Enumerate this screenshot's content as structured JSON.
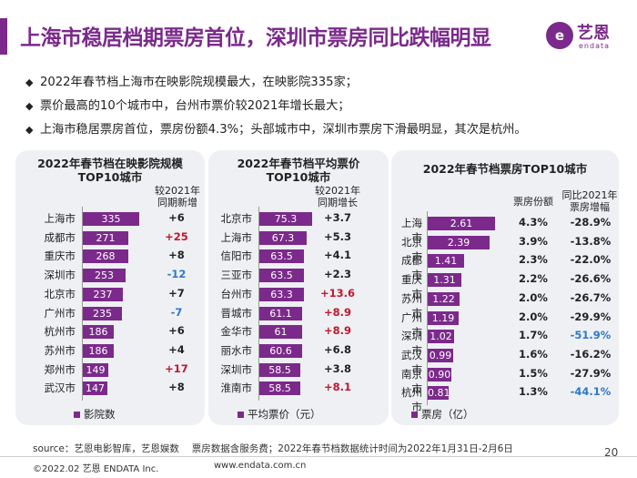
{
  "title": "上海市稳居档期票房首位，深圳市票房同比跌幅明显",
  "logo": {
    "mark": "e",
    "cn": "艺恩",
    "en": "endata"
  },
  "bullets": [
    "2022年春节档上海市在映影院规模最大，在映影院335家；",
    "票价最高的10个城市中，台州市票价较2021年增长最大；",
    "上海市稳居票房首位，票房份额4.3%；头部城市中，深圳市票房下滑最明显，其次是杭州。"
  ],
  "bullet_symbol": "◆",
  "colors": {
    "bar": "#7b2a8b",
    "positive_red": "#c0172e",
    "negative_blue": "#2d78c8"
  },
  "chart_data": [
    {
      "type": "bar",
      "title_line1": "2022年春节档在映影院规模",
      "title_line2": "TOP10城市",
      "change_header_line1": "较2021年",
      "change_header_line2": "同期新增",
      "legend": "影院数",
      "categories": [
        "上海市",
        "成都市",
        "重庆市",
        "深圳市",
        "北京市",
        "广州市",
        "杭州市",
        "苏州市",
        "郑州市",
        "武汉市"
      ],
      "values": [
        335,
        271,
        268,
        253,
        237,
        235,
        186,
        186,
        149,
        147
      ],
      "changes": [
        "+6",
        "+25",
        "+8",
        "-12",
        "+7",
        "-7",
        "+6",
        "+4",
        "+17",
        "+8"
      ],
      "change_colors": [
        "up",
        "red",
        "up",
        "blue",
        "up",
        "blue",
        "up",
        "up",
        "red",
        "up"
      ],
      "xlim": [
        0,
        335
      ]
    },
    {
      "type": "bar",
      "title_line1": "2022年春节档平均票价",
      "title_line2": "TOP10城市",
      "change_header_line1": "较2021年",
      "change_header_line2": "同期增长",
      "legend": "平均票价（元）",
      "categories": [
        "北京市",
        "上海市",
        "信阳市",
        "三亚市",
        "台州市",
        "晋城市",
        "金华市",
        "丽水市",
        "深圳市",
        "淮南市"
      ],
      "values": [
        75.3,
        67.3,
        63.5,
        63.5,
        63.3,
        61.1,
        61.0,
        60.6,
        58.5,
        58.5
      ],
      "changes": [
        "+3.7",
        "+5.3",
        "+4.1",
        "+2.3",
        "+13.6",
        "+8.9",
        "+8.9",
        "+6.8",
        "+3.8",
        "+8.1"
      ],
      "change_colors": [
        "up",
        "up",
        "up",
        "up",
        "red",
        "red",
        "red",
        "up",
        "up",
        "red"
      ],
      "xlim": [
        0,
        75.3
      ]
    },
    {
      "type": "bar",
      "title_line1": "2022年春节档票房TOP10城市",
      "share_header": "票房份额",
      "change_header_line1": "同比2021年",
      "change_header_line2": "票房增幅",
      "legend": "票房（亿）",
      "categories": [
        "上海市",
        "北京市",
        "成都市",
        "重庆市",
        "苏州市",
        "广州市",
        "深圳市",
        "武汉市",
        "南京市",
        "杭州市"
      ],
      "values": [
        2.61,
        2.39,
        1.41,
        1.31,
        1.22,
        1.19,
        1.02,
        0.99,
        0.9,
        0.81
      ],
      "value_labels": [
        "2.61",
        "2.39",
        "1.41",
        "1.31",
        "1.22",
        "1.19",
        "1.02",
        "0.99",
        "0.90",
        "0.81"
      ],
      "shares": [
        "4.3%",
        "3.9%",
        "2.3%",
        "2.2%",
        "2.0%",
        "2.0%",
        "1.7%",
        "1.6%",
        "1.5%",
        "1.3%"
      ],
      "changes": [
        "-28.9%",
        "-13.8%",
        "-22.0%",
        "-26.6%",
        "-26.7%",
        "-29.9%",
        "-51.9%",
        "-16.2%",
        "-27.9%",
        "-44.1%"
      ],
      "change_colors": [
        "up",
        "up",
        "up",
        "up",
        "up",
        "up",
        "blue",
        "up",
        "up",
        "blue"
      ],
      "xlim": [
        0,
        2.61
      ]
    }
  ],
  "source": "source：艺恩电影智库，艺恩娱数　 票房数据含服务费；2022年春节档数据统计时间为2022年1月31日-2月6日",
  "copyright": "©2022.02 艺恩 ENDATA Inc.",
  "website": "www.endata.com.cn",
  "page_number": "20"
}
